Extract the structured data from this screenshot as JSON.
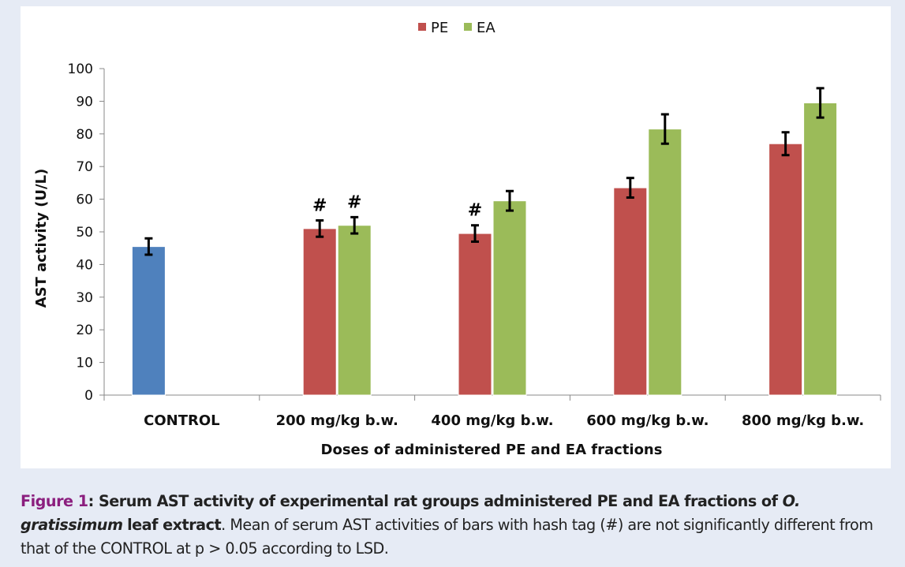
{
  "chart_data": {
    "type": "bar",
    "categories": [
      "CONTROL",
      "200 mg/kg b.w.",
      "400 mg/kg b.w.",
      "600 mg/kg b.w.",
      "800 mg/kg b.w."
    ],
    "control": {
      "value": 45.5,
      "error": 2.5,
      "color": "#4f81bd"
    },
    "series": [
      {
        "name": "PE",
        "color": "#c0504d",
        "values": [
          null,
          51,
          49.5,
          63.5,
          77
        ],
        "errors": [
          null,
          2.5,
          2.5,
          3,
          3.5
        ],
        "marks": [
          null,
          "#",
          "#",
          null,
          null
        ]
      },
      {
        "name": "EA",
        "color": "#9bbb59",
        "values": [
          null,
          52,
          59.5,
          81.5,
          89.5
        ],
        "errors": [
          null,
          2.5,
          3,
          4.5,
          4.5
        ],
        "marks": [
          null,
          "#",
          null,
          null,
          null
        ]
      }
    ],
    "ylabel": "AST activity (U/L)",
    "xlabel": "Doses of administered PE and EA fractions",
    "ylim": [
      0,
      100
    ],
    "yticks": [
      0,
      10,
      20,
      30,
      40,
      50,
      60,
      70,
      80,
      90,
      100
    ],
    "legend_position": "top-center",
    "grid": false
  },
  "caption": {
    "label": "Figure 1",
    "sep": ": ",
    "bold_text": "Serum AST activity of experimental rat groups administered PE and EA fractions of ",
    "italic_text": "O. gratissimum",
    "bold_text_2": "leaf extract",
    "plain_text": ". Mean of serum AST activities of bars with hash tag (#) are not significantly different from that of the CONTROL at p > 0.05 according to LSD."
  }
}
